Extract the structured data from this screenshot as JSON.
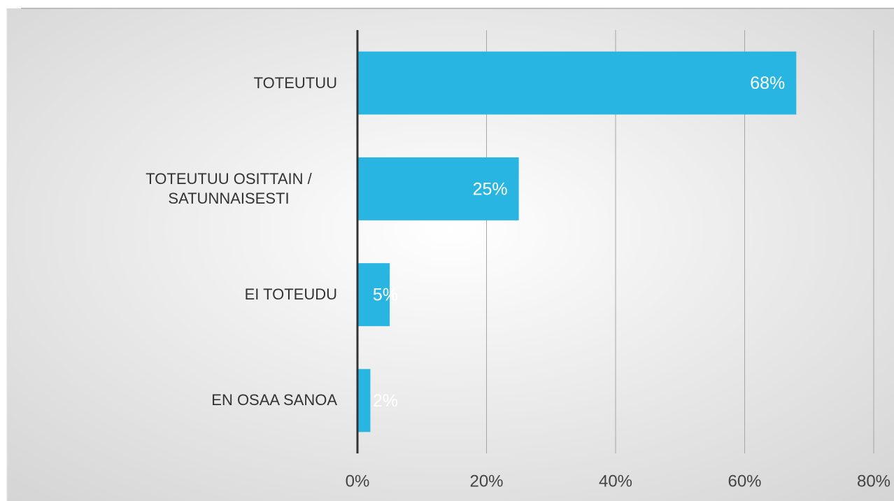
{
  "chart_data": {
    "type": "barh",
    "categories": [
      "TOTEUTUU",
      "TOTEUTUU OSITTAIN / SATUNNAISESTI",
      "EI TOTEUDU",
      "EN OSAA SANOA"
    ],
    "values": [
      68,
      25,
      5,
      2
    ],
    "value_labels": [
      "68%",
      "25%",
      "5%",
      "2%"
    ],
    "color": "#29b5e1",
    "xlim": [
      0,
      80
    ],
    "xticks": [
      {
        "value": 0,
        "label": "0%"
      },
      {
        "value": 20,
        "label": "20%"
      },
      {
        "value": 40,
        "label": "40%"
      },
      {
        "value": 60,
        "label": "60%"
      },
      {
        "value": 80,
        "label": "80%"
      }
    ],
    "grid": true
  }
}
